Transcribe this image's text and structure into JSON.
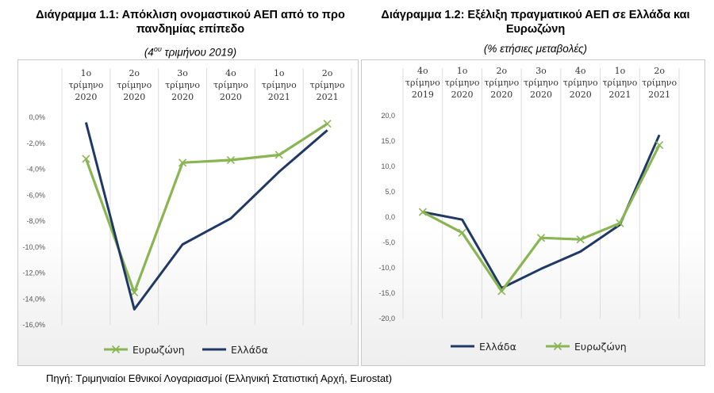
{
  "chart_data": [
    {
      "type": "line",
      "title": "Διάγραμμα 1.1: Απόκλιση ονομαστικού ΑΕΠ από το προ πανδημίας επίπεδο",
      "subtitle_base": "(4",
      "subtitle_sup": "ου",
      "subtitle_rest": " τριμήνου 2019)",
      "categories": [
        [
          "1ο",
          "τρίμηνο",
          "2020"
        ],
        [
          "2ο",
          "τρίμηνο",
          "2020"
        ],
        [
          "3ο",
          "τρίμηνο",
          "2020"
        ],
        [
          "4ο",
          "τρίμηνο",
          "2020"
        ],
        [
          "1ο",
          "τρίμηνο",
          "2021"
        ],
        [
          "2ο",
          "τρίμηνο",
          "2021"
        ]
      ],
      "yticks": [
        "0,0%",
        "-2,0%",
        "-4,0%",
        "-6,0%",
        "-8,0%",
        "-10,0%",
        "-12,0%",
        "-14,0%",
        "-16,0%"
      ],
      "ylim": [
        -16,
        0
      ],
      "xlabel": "",
      "ylabel": "",
      "legend_position": "bottom",
      "series": [
        {
          "name": "Ευρωζώνη",
          "color": "#8ab553",
          "marker": "x",
          "values": [
            -3.2,
            -13.5,
            -3.5,
            -3.3,
            -2.9,
            -0.5
          ]
        },
        {
          "name": "Ελλάδα",
          "color": "#1f3864",
          "marker": "none",
          "values": [
            -0.4,
            -14.8,
            -9.8,
            -7.8,
            -4.2,
            -1.0
          ]
        }
      ]
    },
    {
      "type": "line",
      "title": "Διάγραμμα 1.2: Εξέλιξη πραγματικού ΑΕΠ σε Ελλάδα και Ευρωζώνη",
      "subtitle": "(% ετήσιες μεταβολές)",
      "categories": [
        [
          "4ο",
          "τρίμηνο",
          "2019"
        ],
        [
          "1ο",
          "τρίμηνο",
          "2020"
        ],
        [
          "2ο",
          "τρίμηνο",
          "2020"
        ],
        [
          "3ο",
          "τρίμηνο",
          "2020"
        ],
        [
          "4ο",
          "τρίμηνο",
          "2020"
        ],
        [
          "1ο",
          "τρίμηνο",
          "2021"
        ],
        [
          "2ο",
          "τρίμηνο",
          "2021"
        ]
      ],
      "yticks": [
        "20,0",
        "15,0",
        "10,0",
        "5,0",
        "0,0",
        "-5,0",
        "-10,0",
        "-15,0",
        "-20,0"
      ],
      "ylim": [
        -20,
        20
      ],
      "xlabel": "",
      "ylabel": "",
      "legend_position": "bottom",
      "series": [
        {
          "name": "Ελλάδα",
          "color": "#1f3864",
          "marker": "none",
          "values": [
            1.0,
            -0.5,
            -14.0,
            -10.2,
            -6.8,
            -1.5,
            16.2
          ]
        },
        {
          "name": "Ευρωζώνη",
          "color": "#8ab553",
          "marker": "x",
          "values": [
            1.0,
            -3.1,
            -14.6,
            -4.1,
            -4.4,
            -1.2,
            14.2
          ]
        }
      ]
    }
  ],
  "source": "Πηγή: Τριμηνιαίοι Εθνικοί Λογαριασμοί (Ελληνική Στατιστική Αρχή, Eurostat)"
}
